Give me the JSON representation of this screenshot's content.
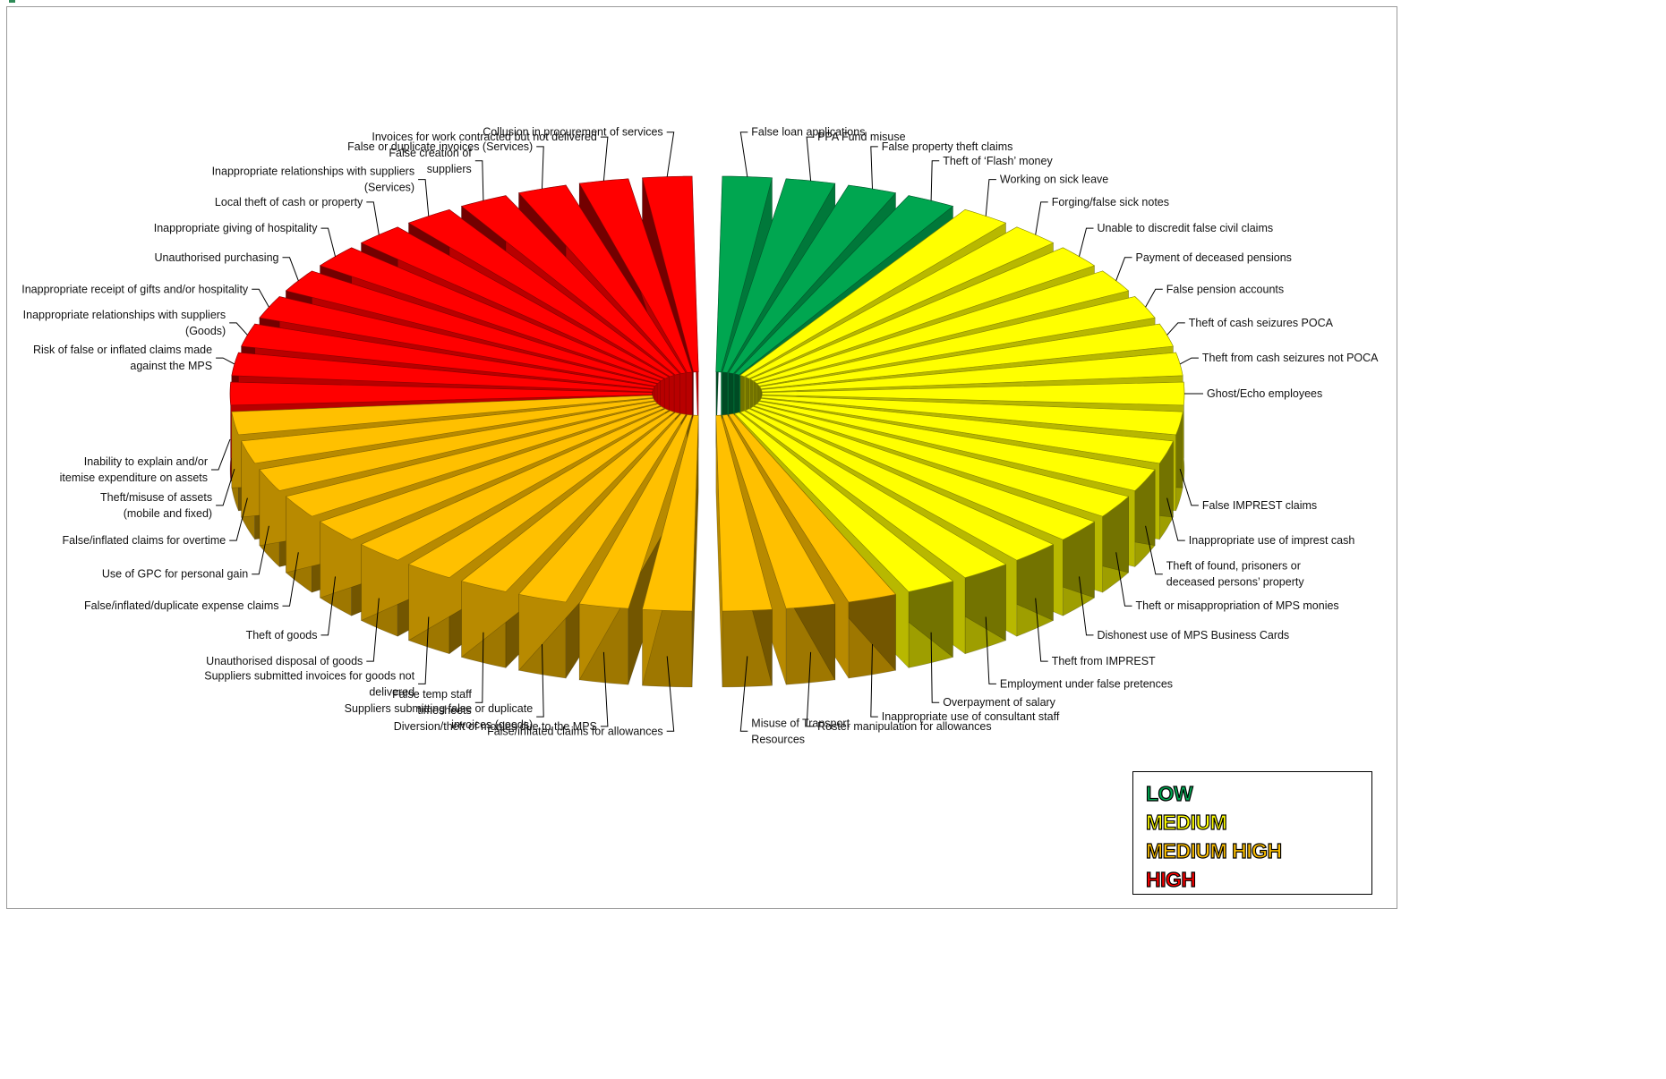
{
  "chart_data": {
    "type": "pie",
    "style": "3d-exploded-ring",
    "title": "",
    "levels": [
      {
        "key": "low",
        "name": "LOW",
        "color": "#00a650"
      },
      {
        "key": "medium",
        "name": "MEDIUM",
        "color": "#ffff00"
      },
      {
        "key": "medium_high",
        "name": "MEDIUM HIGH",
        "color": "#ffc000"
      },
      {
        "key": "high",
        "name": "HIGH",
        "color": "#ff0000"
      }
    ],
    "slices": [
      {
        "label": "False loan applications",
        "level": "low",
        "value": 1
      },
      {
        "label": "PPA Fund misuse",
        "level": "low",
        "value": 1
      },
      {
        "label": "False property theft claims",
        "level": "low",
        "value": 1
      },
      {
        "label": "Theft of ‘Flash’ money",
        "level": "low",
        "value": 1
      },
      {
        "label": "Working on sick leave",
        "level": "medium",
        "value": 1
      },
      {
        "label": "Forging/false sick notes",
        "level": "medium",
        "value": 1
      },
      {
        "label": "Unable to discredit false civil claims",
        "level": "medium",
        "value": 1
      },
      {
        "label": "Payment of deceased pensions",
        "level": "medium",
        "value": 1
      },
      {
        "label": "False pension accounts",
        "level": "medium",
        "value": 1
      },
      {
        "label": "Theft of cash seizures POCA",
        "level": "medium",
        "value": 1
      },
      {
        "label": "Theft from cash seizures not POCA",
        "level": "medium",
        "value": 1
      },
      {
        "label": "Ghost/Echo employees",
        "level": "medium",
        "value": 1
      },
      {
        "label": "False IMPREST claims",
        "level": "medium",
        "value": 1
      },
      {
        "label": "Inappropriate use of imprest cash",
        "level": "medium",
        "value": 1
      },
      {
        "label": "Theft of found, prisoners  or\ndeceased persons’ property",
        "level": "medium",
        "value": 1
      },
      {
        "label": "Theft or misappropriation of MPS monies",
        "level": "medium",
        "value": 1
      },
      {
        "label": "Dishonest use of MPS Business Cards",
        "level": "medium",
        "value": 1
      },
      {
        "label": "Theft from IMPREST",
        "level": "medium",
        "value": 1
      },
      {
        "label": "Employment under false pretences",
        "level": "medium",
        "value": 1
      },
      {
        "label": "Overpayment of salary",
        "level": "medium",
        "value": 1
      },
      {
        "label": "Inappropriate use of consultant staff",
        "level": "medium_high",
        "value": 1
      },
      {
        "label": "Roster manipulation for allowances",
        "level": "medium_high",
        "value": 1
      },
      {
        "label": "Misuse of Transport\nResources",
        "level": "medium_high",
        "value": 1
      },
      {
        "label": "False/inflated claims for allowances",
        "level": "medium_high",
        "value": 1
      },
      {
        "label": "Diversion/theft of monies due to the MPS",
        "level": "medium_high",
        "value": 1
      },
      {
        "label": "Suppliers submitting false or duplicate\ninvoices (goods)",
        "level": "medium_high",
        "value": 1
      },
      {
        "label": "False temp staff\ntimesheets",
        "level": "medium_high",
        "value": 1
      },
      {
        "label": "Suppliers submitted invoices for  goods not\ndelivered",
        "level": "medium_high",
        "value": 1
      },
      {
        "label": "Unauthorised disposal of goods",
        "level": "medium_high",
        "value": 1
      },
      {
        "label": "Theft of goods",
        "level": "medium_high",
        "value": 1
      },
      {
        "label": "False/inflated/duplicate expense claims",
        "level": "medium_high",
        "value": 1
      },
      {
        "label": "Use of GPC for personal gain",
        "level": "medium_high",
        "value": 1
      },
      {
        "label": "False/inflated claims for overtime",
        "level": "medium_high",
        "value": 1
      },
      {
        "label": "Theft/misuse of assets\n(mobile and fixed)",
        "level": "medium_high",
        "value": 1
      },
      {
        "label": "Inability to explain and/or\nitemise expenditure on assets",
        "level": "high",
        "value": 1
      },
      {
        "label": "Risk of false or inflated claims made\nagainst the MPS",
        "level": "high",
        "value": 1
      },
      {
        "label": "Inappropriate relationships with suppliers\n(Goods)",
        "level": "high",
        "value": 1
      },
      {
        "label": "Inappropriate receipt of gifts and/or hospitality",
        "level": "high",
        "value": 1
      },
      {
        "label": "Unauthorised purchasing",
        "level": "high",
        "value": 1
      },
      {
        "label": "Inappropriate giving  of hospitality",
        "level": "high",
        "value": 1
      },
      {
        "label": "Local theft of cash or property",
        "level": "high",
        "value": 1
      },
      {
        "label": "Inappropriate relationships with suppliers\n(Services)",
        "level": "high",
        "value": 1
      },
      {
        "label": "False creation of\nsuppliers",
        "level": "high",
        "value": 1
      },
      {
        "label": "False or duplicate invoices (Services)",
        "level": "high",
        "value": 1
      },
      {
        "label": "Invoices for work contracted  but not delivered",
        "level": "high",
        "value": 1
      },
      {
        "label": "Collusion in procurement of services",
        "level": "high",
        "value": 1
      }
    ],
    "legend": {
      "position": "bottom-right",
      "items": [
        "LOW",
        "MEDIUM",
        "MEDIUM HIGH",
        "HIGH"
      ]
    }
  }
}
